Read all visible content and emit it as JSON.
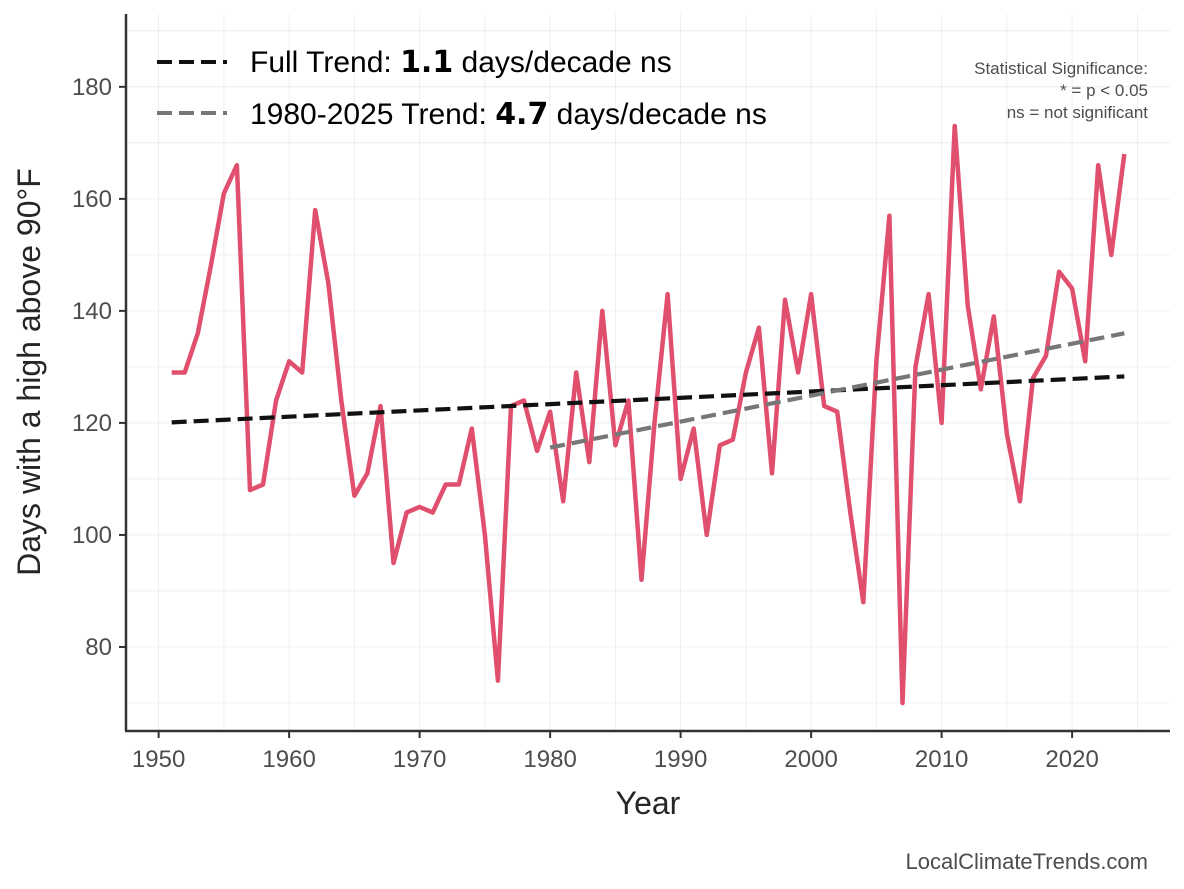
{
  "chart_data": {
    "type": "line",
    "xlabel": "Year",
    "ylabel": "Days with a high above 90°F",
    "xlim": [
      1947.5,
      2027.5
    ],
    "ylim": [
      65,
      193
    ],
    "x_ticks": [
      1950,
      1960,
      1970,
      1980,
      1990,
      2000,
      2010,
      2020
    ],
    "y_ticks": [
      80,
      100,
      120,
      140,
      160,
      180
    ],
    "grid": true,
    "series": [
      {
        "name": "Days above 90°F",
        "color": "#e0506e",
        "x": [
          1951,
          1952,
          1953,
          1954,
          1955,
          1956,
          1957,
          1958,
          1959,
          1960,
          1961,
          1962,
          1963,
          1964,
          1965,
          1966,
          1967,
          1968,
          1969,
          1970,
          1971,
          1972,
          1973,
          1974,
          1975,
          1976,
          1977,
          1978,
          1979,
          1980,
          1981,
          1982,
          1983,
          1984,
          1985,
          1986,
          1987,
          1988,
          1989,
          1990,
          1991,
          1992,
          1993,
          1994,
          1995,
          1996,
          1997,
          1998,
          1999,
          2000,
          2001,
          2002,
          2003,
          2004,
          2005,
          2006,
          2007,
          2008,
          2009,
          2010,
          2011,
          2012,
          2013,
          2014,
          2015,
          2016,
          2017,
          2018,
          2019,
          2020,
          2021,
          2022,
          2023,
          2024
        ],
        "values": [
          129,
          129,
          136,
          148,
          161,
          166,
          108,
          109,
          124,
          131,
          129,
          158,
          145,
          124,
          107,
          111,
          123,
          95,
          104,
          105,
          104,
          109,
          109,
          119,
          100,
          74,
          123,
          124,
          115,
          122,
          106,
          129,
          113,
          140,
          116,
          124,
          92,
          120,
          143,
          110,
          119,
          100,
          116,
          117,
          129,
          137,
          111,
          142,
          129,
          143,
          123,
          122,
          104,
          88,
          131,
          157,
          70,
          130,
          143,
          120,
          173,
          141,
          126,
          139,
          118,
          106,
          128,
          132,
          147,
          144,
          131,
          166,
          150,
          168
        ]
      }
    ],
    "trend_lines": [
      {
        "name": "Full Trend",
        "color": "#111111",
        "x": [
          1951,
          2024
        ],
        "values": [
          120.1,
          128.3
        ]
      },
      {
        "name": "1980-2025 Trend",
        "color": "#777777",
        "x": [
          1980,
          2024
        ],
        "values": [
          115.6,
          136.0
        ]
      }
    ],
    "legend": [
      {
        "prefix": "Full Trend: ",
        "value": "1.1",
        "suffix": " days/decade ns",
        "color": "#111111"
      },
      {
        "prefix": "1980-2025 Trend: ",
        "value": "4.7",
        "suffix": " days/decade ns",
        "color": "#777777"
      }
    ],
    "legend_position": "top-left",
    "annotation": [
      "Statistical Significance:",
      "* = p < 0.05",
      "ns = not significant"
    ],
    "credit": "LocalClimateTrends.com"
  }
}
